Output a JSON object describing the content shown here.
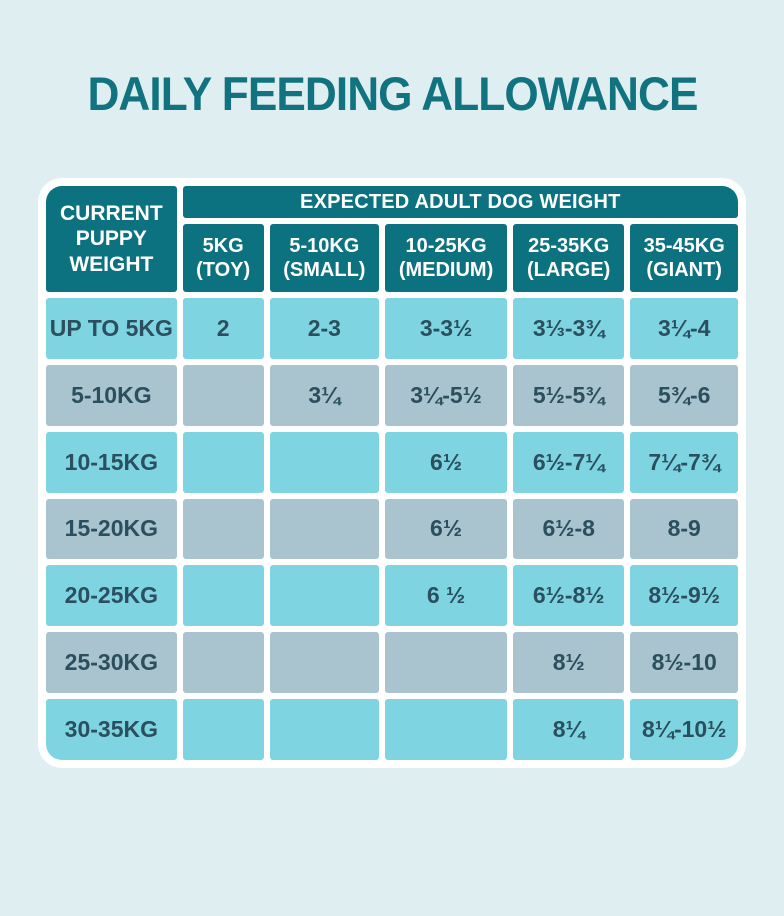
{
  "page": {
    "title": "DAILY FEEDING ALLOWANCE"
  },
  "table": {
    "corner_header": "CURRENT PUPPY WEIGHT",
    "group_header": "EXPECTED ADULT DOG WEIGHT",
    "columns": [
      {
        "line1": "5KG",
        "line2": "(TOY)"
      },
      {
        "line1": "5-10KG",
        "line2": "(SMALL)"
      },
      {
        "line1": "10-25KG",
        "line2": "(MEDIUM)"
      },
      {
        "line1": "25-35KG",
        "line2": "(LARGE)"
      },
      {
        "line1": "35-45KG",
        "line2": "(GIANT)"
      }
    ],
    "rows": [
      {
        "label": "UP TO 5KG",
        "values": [
          "2",
          "2-3",
          "3-3½",
          "3⅓-3¾",
          "3¼-4"
        ]
      },
      {
        "label": "5-10KG",
        "values": [
          "",
          "3¼",
          "3¼-5½",
          "5½-5¾",
          "5¾-6"
        ]
      },
      {
        "label": "10-15KG",
        "values": [
          "",
          "",
          "6½",
          "6½-7¼",
          "7¼-7¾"
        ]
      },
      {
        "label": "15-20KG",
        "values": [
          "",
          "",
          "6½",
          "6½-8",
          "8-9"
        ]
      },
      {
        "label": "20-25KG",
        "values": [
          "",
          "",
          "6 ½",
          "6½-8½",
          "8½-9½"
        ]
      },
      {
        "label": "25-30KG",
        "values": [
          "",
          "",
          "",
          "8½",
          "8½-10"
        ]
      },
      {
        "label": "30-35KG",
        "values": [
          "",
          "",
          "",
          "8¼",
          "8¼-10½"
        ]
      }
    ]
  },
  "colors": {
    "background": "#dfeef0",
    "title": "#11737f",
    "header_bg": "#0d7280",
    "header_text": "#ffffff",
    "row_cyan": "#7ed5e1",
    "row_gray": "#a9c4ce",
    "cell_text": "#2b4f5e",
    "table_border": "#ffffff"
  }
}
